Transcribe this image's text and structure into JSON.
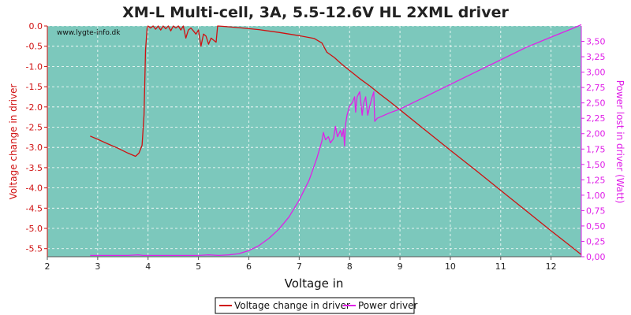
{
  "chart_data": {
    "type": "line",
    "title": "XM-L Multi-cell, 3A, 5.5-12.6V HL 2XML driver",
    "xlabel": "Voltage in",
    "ylabel_left": "Voltage change in driver",
    "ylabel_right": "Power lost in driver (Watt)",
    "watermark": "www.lygte-info.dk",
    "xlim": [
      2,
      12.6
    ],
    "ylim_left": [
      -5.7,
      0
    ],
    "ylim_right": [
      0,
      3.75
    ],
    "x_ticks": [
      "2",
      "3",
      "4",
      "5",
      "6",
      "7",
      "8",
      "9",
      "10",
      "11",
      "12"
    ],
    "y_left_ticks": [
      "0.0",
      "-0.5",
      "-1.0",
      "-1.5",
      "-2.0",
      "-2.5",
      "-3.0",
      "-3.5",
      "-4.0",
      "-4.5",
      "-5.0",
      "-5.5"
    ],
    "y_right_ticks": [
      "0,00",
      "0,25",
      "0,50",
      "0,75",
      "1,00",
      "1,25",
      "1,50",
      "1,75",
      "2,00",
      "2,25",
      "2,50",
      "2,75",
      "3,00",
      "3,25",
      "3,50"
    ],
    "grid": true,
    "legend_position": "bottom-center",
    "plot_bg": "#7cc8bc",
    "series": [
      {
        "name": "Voltage change in driver",
        "axis": "left",
        "color": "#d01010",
        "points": [
          [
            2.85,
            -2.72
          ],
          [
            3.0,
            -2.8
          ],
          [
            3.2,
            -2.91
          ],
          [
            3.4,
            -3.02
          ],
          [
            3.6,
            -3.14
          ],
          [
            3.75,
            -3.22
          ],
          [
            3.82,
            -3.14
          ],
          [
            3.88,
            -2.95
          ],
          [
            3.92,
            -2.2
          ],
          [
            3.95,
            -0.6
          ],
          [
            3.98,
            -0.05
          ],
          [
            4.0,
            0.0
          ],
          [
            4.05,
            -0.05
          ],
          [
            4.1,
            0.0
          ],
          [
            4.15,
            -0.08
          ],
          [
            4.2,
            0.0
          ],
          [
            4.25,
            -0.1
          ],
          [
            4.3,
            0.0
          ],
          [
            4.35,
            -0.07
          ],
          [
            4.4,
            0.0
          ],
          [
            4.45,
            -0.12
          ],
          [
            4.5,
            0.0
          ],
          [
            4.55,
            -0.05
          ],
          [
            4.6,
            0.0
          ],
          [
            4.65,
            -0.1
          ],
          [
            4.7,
            0.0
          ],
          [
            4.75,
            -0.3
          ],
          [
            4.8,
            -0.1
          ],
          [
            4.85,
            -0.05
          ],
          [
            4.9,
            -0.12
          ],
          [
            4.95,
            -0.2
          ],
          [
            5.0,
            -0.1
          ],
          [
            5.05,
            -0.5
          ],
          [
            5.1,
            -0.2
          ],
          [
            5.15,
            -0.25
          ],
          [
            5.2,
            -0.45
          ],
          [
            5.25,
            -0.3
          ],
          [
            5.3,
            -0.35
          ],
          [
            5.35,
            -0.4
          ],
          [
            5.38,
            0.0
          ],
          [
            5.5,
            -0.01
          ],
          [
            5.8,
            -0.04
          ],
          [
            6.2,
            -0.09
          ],
          [
            6.6,
            -0.16
          ],
          [
            7.0,
            -0.24
          ],
          [
            7.3,
            -0.31
          ],
          [
            7.45,
            -0.42
          ],
          [
            7.55,
            -0.65
          ],
          [
            7.7,
            -0.78
          ],
          [
            7.85,
            -0.95
          ],
          [
            8.0,
            -1.1
          ],
          [
            8.2,
            -1.3
          ],
          [
            8.4,
            -1.48
          ],
          [
            8.6,
            -1.68
          ],
          [
            8.8,
            -1.87
          ],
          [
            9.0,
            -2.07
          ],
          [
            9.5,
            -2.57
          ],
          [
            10.0,
            -3.07
          ],
          [
            10.5,
            -3.56
          ],
          [
            11.0,
            -4.06
          ],
          [
            11.5,
            -4.56
          ],
          [
            12.0,
            -5.06
          ],
          [
            12.4,
            -5.45
          ],
          [
            12.6,
            -5.65
          ]
        ]
      },
      {
        "name": "Power driver",
        "axis": "right",
        "color": "#e020e8",
        "points": [
          [
            2.85,
            0.02
          ],
          [
            3.2,
            0.02
          ],
          [
            3.6,
            0.02
          ],
          [
            3.8,
            0.03
          ],
          [
            3.9,
            0.02
          ],
          [
            4.0,
            0.02
          ],
          [
            4.5,
            0.02
          ],
          [
            5.0,
            0.02
          ],
          [
            5.2,
            0.03
          ],
          [
            5.4,
            0.02
          ],
          [
            5.6,
            0.03
          ],
          [
            5.8,
            0.05
          ],
          [
            6.0,
            0.1
          ],
          [
            6.2,
            0.18
          ],
          [
            6.4,
            0.3
          ],
          [
            6.6,
            0.45
          ],
          [
            6.8,
            0.65
          ],
          [
            7.0,
            0.92
          ],
          [
            7.2,
            1.25
          ],
          [
            7.35,
            1.6
          ],
          [
            7.45,
            1.88
          ],
          [
            7.48,
            2.02
          ],
          [
            7.52,
            1.9
          ],
          [
            7.58,
            1.95
          ],
          [
            7.62,
            1.85
          ],
          [
            7.68,
            1.92
          ],
          [
            7.72,
            2.12
          ],
          [
            7.76,
            1.95
          ],
          [
            7.82,
            2.05
          ],
          [
            7.85,
            1.95
          ],
          [
            7.88,
            2.08
          ],
          [
            7.9,
            1.8
          ],
          [
            7.92,
            2.15
          ],
          [
            7.95,
            2.3
          ],
          [
            8.0,
            2.45
          ],
          [
            8.05,
            2.5
          ],
          [
            8.1,
            2.6
          ],
          [
            8.12,
            2.35
          ],
          [
            8.15,
            2.6
          ],
          [
            8.2,
            2.68
          ],
          [
            8.25,
            2.3
          ],
          [
            8.28,
            2.5
          ],
          [
            8.32,
            2.6
          ],
          [
            8.36,
            2.3
          ],
          [
            8.4,
            2.45
          ],
          [
            8.45,
            2.6
          ],
          [
            8.48,
            2.68
          ],
          [
            8.5,
            2.2
          ],
          [
            8.55,
            2.25
          ],
          [
            8.8,
            2.34
          ],
          [
            9.0,
            2.4
          ],
          [
            9.5,
            2.6
          ],
          [
            10.0,
            2.8
          ],
          [
            10.5,
            3.0
          ],
          [
            11.0,
            3.2
          ],
          [
            11.5,
            3.4
          ],
          [
            12.0,
            3.57
          ],
          [
            12.4,
            3.7
          ],
          [
            12.6,
            3.77
          ]
        ]
      }
    ]
  }
}
